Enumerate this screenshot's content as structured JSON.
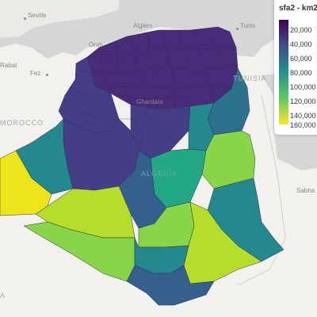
{
  "map": {
    "legend": {
      "title": "sfa2 - km2",
      "ticks": [
        "20,000",
        "40,000",
        "60,000",
        "80,000",
        "100,000",
        "120,000",
        "140,000",
        "160,000"
      ],
      "colors": [
        "#440154",
        "#3b528b",
        "#21918c",
        "#5ec962",
        "#fde725"
      ]
    },
    "places": {
      "seville": "Seville",
      "algiers": "Algiers",
      "tunis": "Tunis",
      "rabat": "Rabat",
      "fez": "Fez",
      "oran": "Oran",
      "ghardaia": "Ghardaïa",
      "sabha": "Sabha"
    },
    "countries": {
      "tunisia": "TUNISIA",
      "morocco": "MOROCCO",
      "algeria": "ALGERIA",
      "libya": "A"
    },
    "region_colors": {
      "north_dense": "#482b79",
      "north_mid": "#433e85",
      "teal_dark": "#2c728e",
      "teal": "#23898e",
      "green_teal": "#22a884",
      "green": "#54c568",
      "light_green": "#89d548",
      "yellow_green": "#b5de2b",
      "yellow": "#ece51b",
      "blue": "#355f8d"
    }
  }
}
